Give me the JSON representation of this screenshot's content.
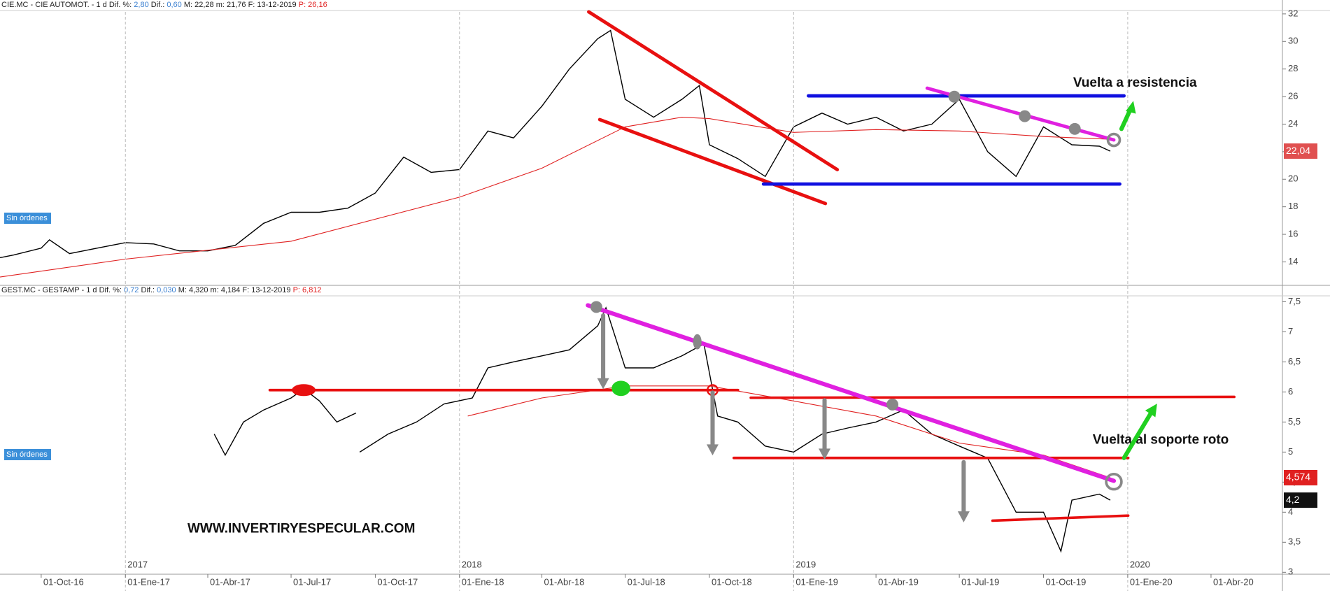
{
  "chart_data": [
    {
      "type": "line",
      "header": [
        "CIE.MC - CIE AUTOMOT. -  1 d  Dif. %: ",
        "2,80",
        "  Dif.: ",
        "0,60",
        "  M: 22,28  m: 21,76  F: 13-12-2019  ",
        "P: 26,16"
      ],
      "status": "Sin órdenes",
      "xlim": [
        "2016-08-17",
        "2020-06-18"
      ],
      "ylim": [
        12.5,
        32.4
      ],
      "yticks": [
        14,
        16,
        18,
        20,
        22,
        24,
        26,
        28,
        30,
        32
      ],
      "series": [
        {
          "color": "#000000",
          "x": [
            "2016-08-17",
            "2016-09-01",
            "2016-10-01",
            "2016-10-10",
            "2016-11-01",
            "2016-12-01",
            "2017-01-01",
            "2017-02-01",
            "2017-03-01",
            "2017-04-01",
            "2017-05-01",
            "2017-06-01",
            "2017-07-01",
            "2017-08-01",
            "2017-09-01",
            "2017-10-01",
            "2017-11-01",
            "2017-12-01",
            "2018-01-01",
            "2018-02-01",
            "2018-03-01",
            "2018-04-01",
            "2018-05-01",
            "2018-06-01",
            "2018-06-15",
            "2018-07-01",
            "2018-08-01",
            "2018-09-01",
            "2018-09-20",
            "2018-10-01",
            "2018-11-01",
            "2018-12-01",
            "2019-01-01",
            "2019-02-01",
            "2019-03-01",
            "2019-04-01",
            "2019-05-01",
            "2019-06-01",
            "2019-07-01",
            "2019-08-01",
            "2019-09-01",
            "2019-10-01",
            "2019-11-01",
            "2019-12-01",
            "2019-12-13"
          ],
          "values": [
            14.3,
            14.5,
            15.0,
            15.6,
            14.6,
            15.0,
            15.4,
            15.3,
            14.8,
            14.8,
            15.2,
            16.8,
            17.6,
            17.6,
            17.9,
            19.0,
            21.6,
            20.5,
            20.7,
            23.5,
            23.0,
            25.3,
            28.0,
            30.2,
            30.8,
            25.8,
            24.5,
            25.8,
            26.8,
            22.5,
            21.5,
            20.2,
            23.8,
            24.8,
            24.0,
            24.5,
            23.5,
            24.0,
            25.8,
            22.0,
            20.2,
            23.8,
            22.5,
            22.4,
            22.04
          ]
        },
        {
          "color": "#e02020",
          "x": [
            "2016-08-17",
            "2017-01-01",
            "2017-07-01",
            "2018-01-01",
            "2018-04-01",
            "2018-07-01",
            "2018-09-01",
            "2018-10-01",
            "2019-01-01",
            "2019-04-01",
            "2019-07-01",
            "2019-10-01",
            "2019-12-13"
          ],
          "values": [
            12.9,
            14.2,
            15.5,
            18.7,
            20.8,
            23.8,
            24.5,
            24.4,
            23.4,
            23.6,
            23.5,
            23.1,
            22.9
          ]
        }
      ],
      "price_tags": [
        {
          "value": 22.04,
          "label": "22,04",
          "color": "#e05050"
        }
      ],
      "annotations": [
        "Vuelta a resistencia"
      ]
    },
    {
      "type": "line",
      "header": [
        "GEST.MC - GESTAMP -  1 d  Dif. %: ",
        "0,72",
        "  Dif.: ",
        "0,030",
        "  M: 4,320  m: 4,184  F: 13-12-2019  ",
        "P: 6,812"
      ],
      "status": "Sin órdenes",
      "xlim": [
        "2016-08-17",
        "2020-06-18"
      ],
      "ylim": [
        2.98,
        7.61
      ],
      "yticks": [
        {
          "value": 7.5,
          "label": "7,5"
        },
        7,
        {
          "value": 6.5,
          "label": "6,5"
        },
        6,
        {
          "value": 5.5,
          "label": "5,5"
        },
        5,
        {
          "value": 4.5,
          "label": "4,5"
        },
        4,
        {
          "value": 3.5,
          "label": "3,5"
        },
        3
      ],
      "xticks": [
        {
          "value": "2016-10-01",
          "label": "01-Oct-16"
        },
        {
          "value": "2017-01-01",
          "label": "01-Ene-17"
        },
        {
          "value": "2017-04-01",
          "label": "01-Abr-17"
        },
        {
          "value": "2017-07-01",
          "label": "01-Jul-17"
        },
        {
          "value": "2017-10-01",
          "label": "01-Oct-17"
        },
        {
          "value": "2018-01-01",
          "label": "01-Ene-18"
        },
        {
          "value": "2018-04-01",
          "label": "01-Abr-18"
        },
        {
          "value": "2018-07-01",
          "label": "01-Jul-18"
        },
        {
          "value": "2018-10-01",
          "label": "01-Oct-18"
        },
        {
          "value": "2019-01-01",
          "label": "01-Ene-19"
        },
        {
          "value": "2019-04-01",
          "label": "01-Abr-19"
        },
        {
          "value": "2019-07-01",
          "label": "01-Jul-19"
        },
        {
          "value": "2019-10-01",
          "label": "01-Oct-19"
        },
        {
          "value": "2020-01-01",
          "label": "01-Ene-20"
        },
        {
          "value": "2020-04-01",
          "label": "01-Abr-20"
        }
      ],
      "year_markers": [
        {
          "value": "2017-01-01",
          "label": "2017"
        },
        {
          "value": "2018-01-01",
          "label": "2018"
        },
        {
          "value": "2019-01-01",
          "label": "2019"
        },
        {
          "value": "2020-01-01",
          "label": "2020"
        }
      ],
      "series": [
        {
          "color": "#000000",
          "x": [
            "2017-04-08",
            "2017-04-20",
            "2017-05-10",
            "2017-06-01",
            "2017-07-01",
            "2017-07-15",
            "2017-08-01",
            "2017-08-20",
            "2017-09-10",
            "2017-09-12",
            "2017-09-14",
            "2017-10-15",
            "2017-11-15",
            "2017-12-15",
            "2018-01-15",
            "2018-02-01",
            "2018-03-01",
            "2018-04-01",
            "2018-05-01",
            "2018-06-01",
            "2018-06-10",
            "2018-07-01",
            "2018-08-01",
            "2018-09-01",
            "2018-09-25",
            "2018-10-10",
            "2018-11-01",
            "2018-12-01",
            "2019-01-01",
            "2019-02-01",
            "2019-03-01",
            "2019-04-01",
            "2019-05-01",
            "2019-06-01",
            "2019-07-01",
            "2019-08-01",
            "2019-09-01",
            "2019-10-01",
            "2019-10-20",
            "2019-11-01",
            "2019-12-01",
            "2019-12-13"
          ],
          "values": [
            5.3,
            4.95,
            5.5,
            5.7,
            5.9,
            6.05,
            5.85,
            5.5,
            5.65,
            null,
            5.0,
            5.3,
            5.5,
            5.8,
            5.9,
            6.4,
            6.5,
            6.6,
            6.7,
            7.1,
            7.4,
            6.4,
            6.4,
            6.6,
            6.8,
            5.6,
            5.5,
            5.1,
            5.0,
            5.3,
            5.4,
            5.5,
            5.7,
            5.3,
            5.1,
            4.9,
            4.0,
            4.0,
            3.35,
            4.2,
            4.3,
            4.2
          ]
        },
        {
          "color": "#e02020",
          "x": [
            "2018-01-10",
            "2018-04-01",
            "2018-07-01",
            "2018-10-01",
            "2019-01-01",
            "2019-04-01",
            "2019-07-01",
            "2019-10-01",
            "2019-12-13"
          ],
          "values": [
            5.6,
            5.9,
            6.1,
            6.1,
            5.85,
            5.6,
            5.15,
            4.95,
            4.574
          ]
        }
      ],
      "price_tags": [
        {
          "value": 4.574,
          "label": "4,574",
          "color": "#e02020"
        },
        {
          "value": 4.2,
          "label": "4,2",
          "color": "#111111"
        }
      ],
      "annotations": [
        "Vuelta al soporte roto",
        "WWW.INVERTIRYESPECULAR.COM"
      ]
    }
  ]
}
